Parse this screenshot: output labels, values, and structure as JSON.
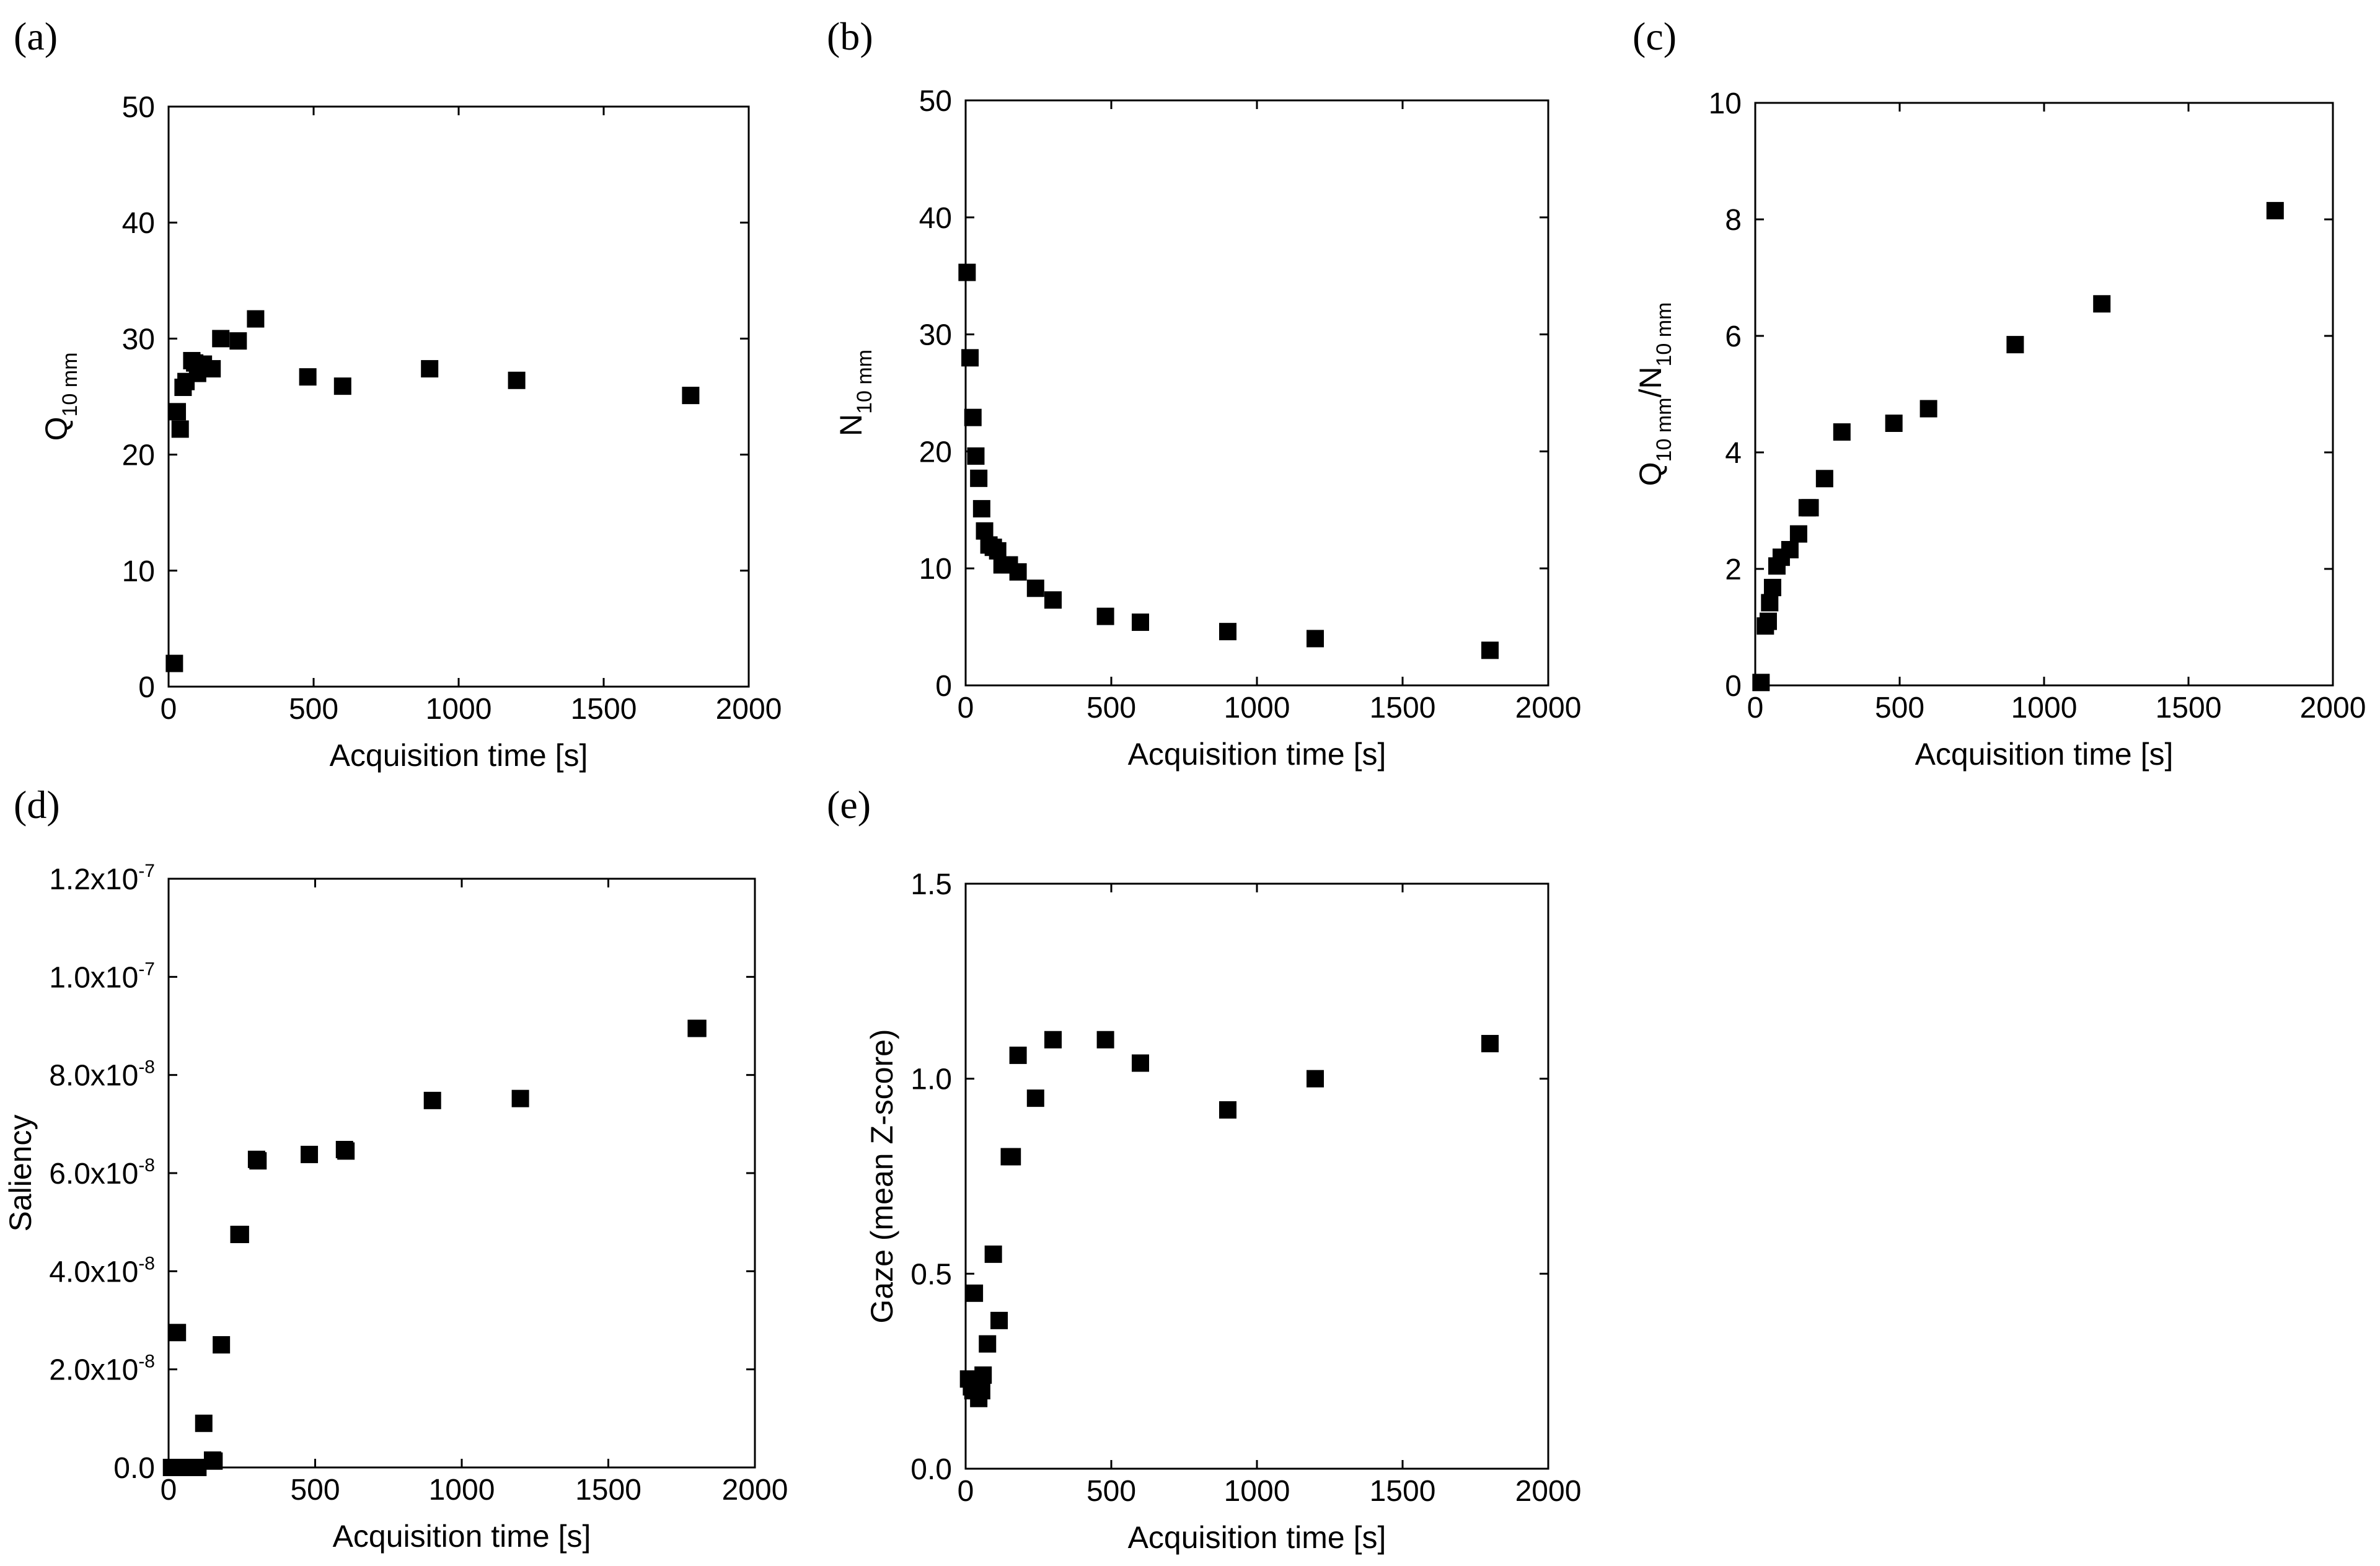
{
  "chart_data": [
    {
      "panel": "(a)",
      "type": "scatter",
      "title": "",
      "xlabel": "Acquisition time [s]",
      "ylabel": {
        "main": "Q",
        "sub": "10 mm"
      },
      "xlim": [
        0,
        2000
      ],
      "ylim": [
        0,
        50
      ],
      "xticks": [
        0,
        500,
        1000,
        1500,
        2000
      ],
      "yticks": [
        0,
        10,
        20,
        30,
        40,
        50
      ],
      "xtick_labels": [
        "0",
        "500",
        "1000",
        "1500",
        "2000"
      ],
      "ytick_labels": [
        "0",
        "10",
        "20",
        "30",
        "40",
        "50"
      ],
      "legend": "none",
      "grid": false,
      "series": [
        {
          "name": "Q10mm",
          "x": [
            20,
            30,
            40,
            50,
            60,
            80,
            90,
            100,
            120,
            150,
            180,
            240,
            300,
            480,
            600,
            900,
            1200,
            1800
          ],
          "y": [
            2.0,
            23.7,
            22.2,
            25.8,
            26.3,
            28.1,
            27.9,
            27.0,
            27.8,
            27.4,
            30.0,
            29.8,
            31.7,
            26.7,
            25.9,
            27.4,
            26.4,
            25.1
          ]
        }
      ]
    },
    {
      "panel": "(b)",
      "type": "scatter",
      "title": "",
      "xlabel": "Acquisition time [s]",
      "ylabel": {
        "main": "N",
        "sub": "10 mm"
      },
      "xlim": [
        0,
        2000
      ],
      "ylim": [
        0,
        50
      ],
      "xticks": [
        0,
        500,
        1000,
        1500,
        2000
      ],
      "yticks": [
        0,
        10,
        20,
        30,
        40,
        50
      ],
      "xtick_labels": [
        "0",
        "500",
        "1000",
        "1500",
        "2000"
      ],
      "ytick_labels": [
        "0",
        "10",
        "20",
        "30",
        "40",
        "50"
      ],
      "legend": "none",
      "grid": false,
      "series": [
        {
          "name": "N10mm",
          "x": [
            5,
            15,
            25,
            35,
            45,
            55,
            65,
            80,
            95,
            110,
            125,
            150,
            180,
            240,
            300,
            480,
            600,
            900,
            1200,
            1800
          ],
          "y": [
            35.3,
            28.0,
            22.9,
            19.6,
            17.7,
            15.1,
            13.2,
            12.0,
            11.8,
            11.5,
            10.3,
            10.3,
            9.7,
            8.3,
            7.3,
            5.9,
            5.4,
            4.6,
            4.0,
            3.0
          ]
        }
      ]
    },
    {
      "panel": "(c)",
      "type": "scatter",
      "title": "",
      "xlabel": "Acquisition time [s]",
      "ylabel": {
        "main": "Q",
        "sub": "10 mm",
        "mid": "/N",
        "sub2": "10 mm"
      },
      "xlim": [
        0,
        2000
      ],
      "ylim": [
        0,
        10
      ],
      "xticks": [
        0,
        500,
        1000,
        1500,
        2000
      ],
      "yticks": [
        0,
        2,
        4,
        6,
        8,
        10
      ],
      "xtick_labels": [
        "0",
        "500",
        "1000",
        "1500",
        "2000"
      ],
      "ytick_labels": [
        "0",
        "2",
        "4",
        "6",
        "8",
        "10"
      ],
      "legend": "none",
      "grid": false,
      "series": [
        {
          "name": "Q10mm/N10mm",
          "x": [
            20,
            35,
            45,
            50,
            60,
            75,
            90,
            120,
            150,
            180,
            190,
            240,
            300,
            480,
            600,
            900,
            1200,
            1800
          ],
          "y": [
            0.05,
            1.02,
            1.1,
            1.42,
            1.68,
            2.05,
            2.2,
            2.33,
            2.6,
            3.05,
            3.05,
            3.55,
            4.35,
            4.5,
            4.75,
            5.85,
            6.55,
            8.15
          ]
        }
      ]
    },
    {
      "panel": "(d)",
      "type": "scatter",
      "title": "",
      "xlabel": "Acquisition time [s]",
      "ylabel": {
        "main": "Saliency"
      },
      "xlim": [
        0,
        2000
      ],
      "ylim": [
        0,
        1.2e-07
      ],
      "xticks": [
        0,
        500,
        1000,
        1500,
        2000
      ],
      "yticks": [
        0,
        2e-08,
        4e-08,
        6e-08,
        8e-08,
        1e-07,
        1.2e-07
      ],
      "xtick_labels": [
        "0",
        "500",
        "1000",
        "1500",
        "2000"
      ],
      "ytick_labels": [
        {
          "base": "0.0",
          "exp": ""
        },
        {
          "base": "2.0x10",
          "exp": "-8"
        },
        {
          "base": "4.0x10",
          "exp": "-8"
        },
        {
          "base": "6.0x10",
          "exp": "-8"
        },
        {
          "base": "8.0x10",
          "exp": "-8"
        },
        {
          "base": "1.0x10",
          "exp": "-7"
        },
        {
          "base": "1.2x10",
          "exp": "-7"
        }
      ],
      "legend": "none",
      "grid": false,
      "series": [
        {
          "name": "Saliency",
          "x": [
            10,
            20,
            30,
            40,
            50,
            60,
            80,
            100,
            120,
            150,
            155,
            180,
            240,
            245,
            300,
            305,
            480,
            600,
            605,
            900,
            1200,
            1800,
            1805
          ],
          "y": [
            0,
            0,
            2.75e-08,
            0,
            0,
            0,
            0,
            0,
            9e-09,
            1.5e-09,
            1.3e-09,
            2.5e-08,
            4.75e-08,
            4.75e-08,
            6.28e-08,
            6.25e-08,
            6.38e-08,
            6.48e-08,
            6.45e-08,
            7.48e-08,
            7.52e-08,
            8.95e-08,
            8.95e-08
          ]
        }
      ]
    },
    {
      "panel": "(e)",
      "type": "scatter",
      "title": "",
      "xlabel": "Acquisition time [s]",
      "ylabel": {
        "main": "Gaze (mean Z-score)"
      },
      "xlim": [
        0,
        2000
      ],
      "ylim": [
        0,
        1.5
      ],
      "xticks": [
        0,
        500,
        1000,
        1500,
        2000
      ],
      "yticks": [
        0,
        0.5,
        1.0,
        1.5
      ],
      "xtick_labels": [
        "0",
        "500",
        "1000",
        "1500",
        "2000"
      ],
      "ytick_labels": [
        "0.0",
        "0.5",
        "1.0",
        "1.5"
      ],
      "legend": "none",
      "grid": false,
      "series": [
        {
          "name": "Gaze",
          "x": [
            10,
            20,
            25,
            30,
            40,
            45,
            50,
            55,
            60,
            75,
            95,
            115,
            150,
            160,
            180,
            240,
            300,
            480,
            600,
            900,
            1200,
            1800
          ],
          "y": [
            0.23,
            0.21,
            0.2,
            0.45,
            0.22,
            0.18,
            0.21,
            0.2,
            0.24,
            0.32,
            0.55,
            0.38,
            0.8,
            0.8,
            1.06,
            0.95,
            1.1,
            1.1,
            1.04,
            0.92,
            1.0,
            1.09
          ]
        }
      ]
    }
  ]
}
